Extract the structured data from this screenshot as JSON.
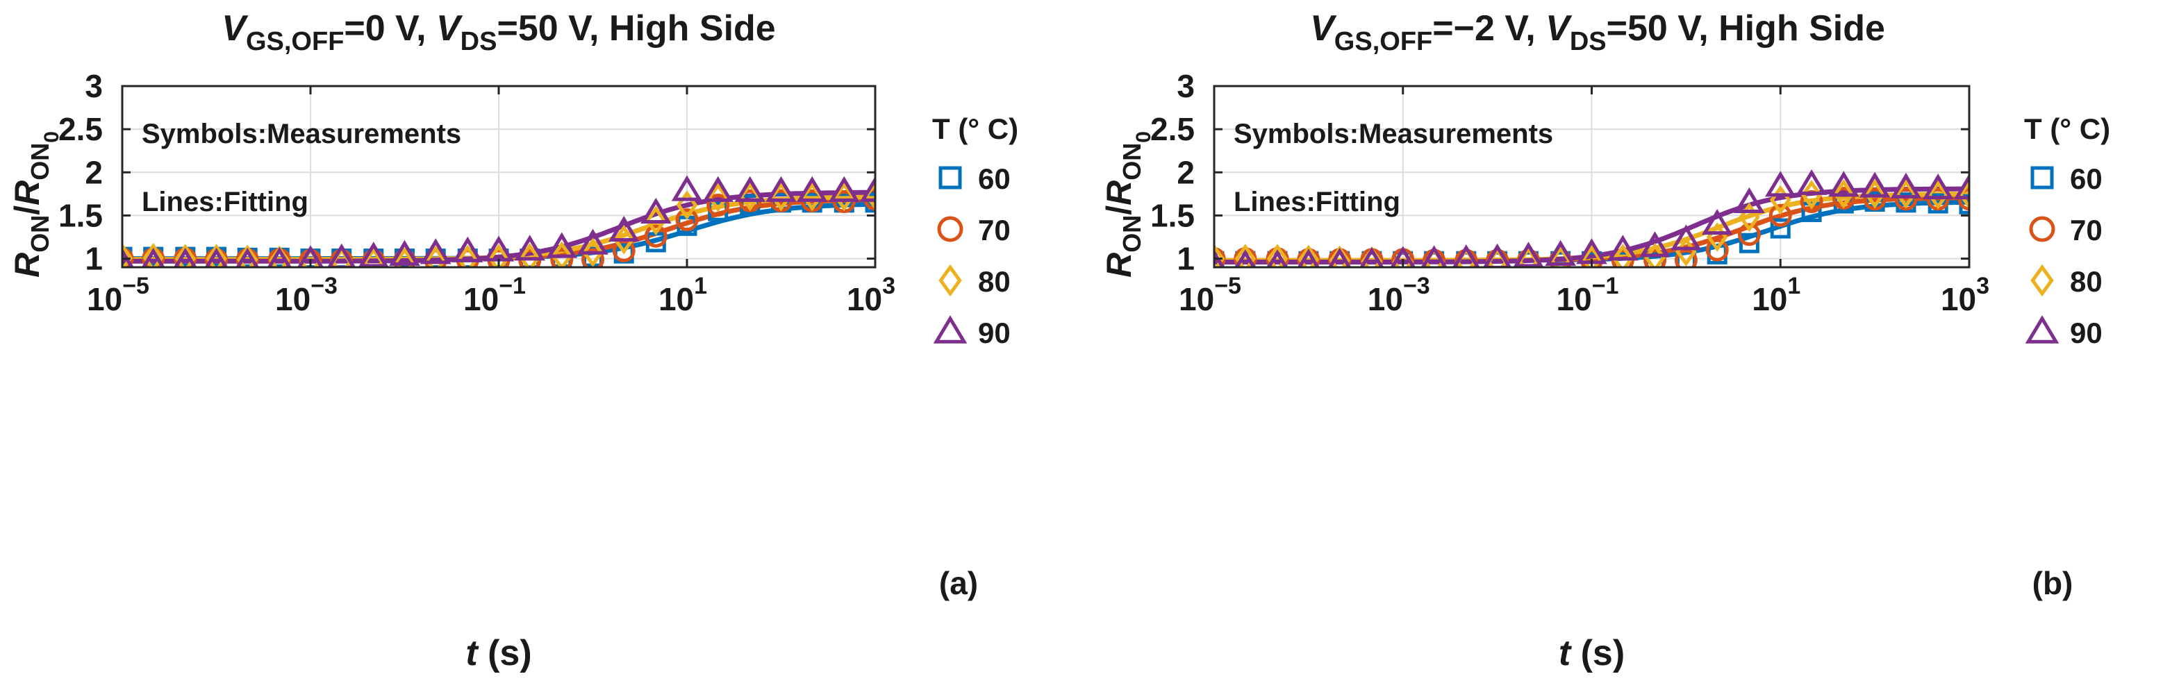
{
  "chart_data": [
    {
      "type": "scatter",
      "panel_label": "(a)",
      "title": {
        "v1": "V",
        "s1": "GS,OFF",
        "rest1": "=0 V, ",
        "v2": "V",
        "s2": "DS",
        "rest2": "=50 V, High Side"
      },
      "xlabel": {
        "var": "t",
        "unit": " (s)"
      },
      "ylabel": {
        "r1": "R",
        "s1": "ON",
        "slash": "/",
        "r2": "R",
        "s2": "ON",
        "sub0": "0"
      },
      "x_scale": "log",
      "xlim": [
        1e-05,
        1000
      ],
      "ylim": [
        0.9,
        3
      ],
      "x_ticks": [
        {
          "base": "10",
          "exp": "−5",
          "value": -5
        },
        {
          "base": "10",
          "exp": "−3",
          "value": -3
        },
        {
          "base": "10",
          "exp": "−1",
          "value": -1
        },
        {
          "base": "10",
          "exp": "1",
          "value": 1
        },
        {
          "base": "10",
          "exp": "3",
          "value": 3
        }
      ],
      "y_ticks": [
        {
          "label": "1",
          "value": 1
        },
        {
          "label": "1.5",
          "value": 1.5
        },
        {
          "label": "2",
          "value": 2
        },
        {
          "label": "2.5",
          "value": 2.5
        },
        {
          "label": "3",
          "value": 3
        }
      ],
      "grid": true,
      "annotations": [
        "Symbols:Measurements",
        "Lines:Fitting"
      ],
      "legend_title": "T (° C)",
      "series": [
        {
          "name": "60",
          "color": "#0072BD",
          "marker": "square",
          "fit": {
            "base": 1.0,
            "delta": 0.64,
            "log_t0": 1.0,
            "k": 2.1
          },
          "x_log": [
            -5,
            -4.67,
            -4.33,
            -4,
            -3.67,
            -3.33,
            -3,
            -2.67,
            -2.33,
            -2,
            -1.67,
            -1.33,
            -1,
            -0.67,
            -0.33,
            0,
            0.33,
            0.67,
            1,
            1.33,
            1.67,
            2,
            2.33,
            2.67,
            3
          ],
          "y": [
            1.02,
            1.02,
            1.02,
            1.02,
            1.01,
            1.01,
            1.0,
            1.0,
            1.0,
            1.0,
            1.0,
            1.0,
            1.0,
            1.0,
            1.01,
            1.02,
            1.06,
            1.19,
            1.38,
            1.55,
            1.63,
            1.65,
            1.65,
            1.65,
            1.65
          ]
        },
        {
          "name": "70",
          "color": "#D95319",
          "marker": "circle",
          "fit": {
            "base": 0.99,
            "delta": 0.7,
            "log_t0": 0.8,
            "k": 2.1
          },
          "x_log": [
            -5,
            -4.67,
            -4.33,
            -4,
            -3.67,
            -3.33,
            -3,
            -2.67,
            -2.33,
            -2,
            -1.67,
            -1.33,
            -1,
            -0.67,
            -0.33,
            0,
            0.33,
            0.67,
            1,
            1.33,
            1.67,
            2,
            2.33,
            2.67,
            3
          ],
          "y": [
            1.0,
            1.0,
            1.0,
            0.99,
            0.99,
            0.99,
            0.98,
            0.98,
            0.98,
            0.98,
            0.98,
            0.98,
            0.98,
            0.98,
            0.99,
            0.99,
            1.09,
            1.26,
            1.45,
            1.62,
            1.67,
            1.67,
            1.67,
            1.66,
            1.69
          ]
        },
        {
          "name": "80",
          "color": "#EDB120",
          "marker": "diamond",
          "fit": {
            "base": 0.99,
            "delta": 0.73,
            "log_t0": 0.55,
            "k": 2.1
          },
          "x_log": [
            -5,
            -4.67,
            -4.33,
            -4,
            -3.67,
            -3.33,
            -3,
            -2.67,
            -2.33,
            -2,
            -1.67,
            -1.33,
            -1,
            -0.67,
            -0.33,
            0,
            0.33,
            0.67,
            1,
            1.33,
            1.67,
            2,
            2.33,
            2.67,
            3
          ],
          "y": [
            1.01,
            1.01,
            1.0,
            1.0,
            0.99,
            0.98,
            0.96,
            0.96,
            0.96,
            0.96,
            0.98,
            0.99,
            1.0,
            1.01,
            1.03,
            1.07,
            1.22,
            1.44,
            1.62,
            1.71,
            1.72,
            1.72,
            1.72,
            1.72,
            1.73
          ]
        },
        {
          "name": "90",
          "color": "#7E2F8E",
          "marker": "triangle",
          "fit": {
            "base": 0.97,
            "delta": 0.8,
            "log_t0": 0.3,
            "k": 2.1
          },
          "x_log": [
            -5,
            -4.67,
            -4.33,
            -4,
            -3.67,
            -3.33,
            -3,
            -2.67,
            -2.33,
            -2,
            -1.67,
            -1.33,
            -1,
            -0.67,
            -0.33,
            0,
            0.33,
            0.67,
            1,
            1.33,
            1.67,
            2,
            2.33,
            2.67,
            3
          ],
          "y": [
            0.95,
            0.95,
            0.95,
            0.95,
            0.95,
            0.96,
            0.98,
            1.0,
            1.02,
            1.04,
            1.06,
            1.08,
            1.09,
            1.1,
            1.13,
            1.17,
            1.32,
            1.53,
            1.79,
            1.78,
            1.78,
            1.78,
            1.78,
            1.78,
            1.78
          ]
        }
      ]
    },
    {
      "type": "scatter",
      "panel_label": "(b)",
      "title": {
        "v1": "V",
        "s1": "GS,OFF",
        "rest1": "=−2 V, ",
        "v2": "V",
        "s2": "DS",
        "rest2": "=50 V, High Side"
      },
      "xlabel": {
        "var": "t",
        "unit": " (s)"
      },
      "ylabel": {
        "r1": "R",
        "s1": "ON",
        "slash": "/",
        "r2": "R",
        "s2": "ON",
        "sub0": "0"
      },
      "x_scale": "log",
      "xlim": [
        1e-05,
        1000
      ],
      "ylim": [
        0.9,
        3
      ],
      "x_ticks": [
        {
          "base": "10",
          "exp": "−5",
          "value": -5
        },
        {
          "base": "10",
          "exp": "−3",
          "value": -3
        },
        {
          "base": "10",
          "exp": "−1",
          "value": -1
        },
        {
          "base": "10",
          "exp": "1",
          "value": 1
        },
        {
          "base": "10",
          "exp": "3",
          "value": 3
        }
      ],
      "y_ticks": [
        {
          "label": "1",
          "value": 1
        },
        {
          "label": "1.5",
          "value": 1.5
        },
        {
          "label": "2",
          "value": 2
        },
        {
          "label": "2.5",
          "value": 2.5
        },
        {
          "label": "3",
          "value": 3
        }
      ],
      "grid": true,
      "annotations": [
        "Symbols:Measurements",
        "Lines:Fitting"
      ],
      "legend_title": "T (° C)",
      "series": [
        {
          "name": "60",
          "color": "#0072BD",
          "marker": "square",
          "fit": {
            "base": 0.98,
            "delta": 0.68,
            "log_t0": 0.85,
            "k": 2.2
          },
          "x_log": [
            -5,
            -4.67,
            -4.33,
            -4,
            -3.67,
            -3.33,
            -3,
            -2.67,
            -2.33,
            -2,
            -1.67,
            -1.33,
            -1,
            -0.67,
            -0.33,
            0,
            0.33,
            0.67,
            1,
            1.33,
            1.67,
            2,
            2.33,
            2.67,
            3
          ],
          "y": [
            0.97,
            0.97,
            0.97,
            0.97,
            0.97,
            0.97,
            0.97,
            0.97,
            0.97,
            0.97,
            0.97,
            0.97,
            0.97,
            0.97,
            0.97,
            0.98,
            1.05,
            1.18,
            1.35,
            1.54,
            1.64,
            1.66,
            1.65,
            1.64,
            1.63
          ]
        },
        {
          "name": "70",
          "color": "#D95319",
          "marker": "circle",
          "fit": {
            "base": 0.98,
            "delta": 0.73,
            "log_t0": 0.6,
            "k": 2.2
          },
          "x_log": [
            -5,
            -4.67,
            -4.33,
            -4,
            -3.67,
            -3.33,
            -3,
            -2.67,
            -2.33,
            -2,
            -1.67,
            -1.33,
            -1,
            -0.67,
            -0.33,
            0,
            0.33,
            0.67,
            1,
            1.33,
            1.67,
            2,
            2.33,
            2.67,
            3
          ],
          "y": [
            1.0,
            1.0,
            1.0,
            0.99,
            0.99,
            0.99,
            0.99,
            0.98,
            0.98,
            0.98,
            0.98,
            0.98,
            0.98,
            0.98,
            0.98,
            0.98,
            1.1,
            1.28,
            1.5,
            1.66,
            1.7,
            1.69,
            1.69,
            1.69,
            1.69
          ]
        },
        {
          "name": "80",
          "color": "#EDB120",
          "marker": "diamond",
          "fit": {
            "base": 0.98,
            "delta": 0.77,
            "log_t0": 0.35,
            "k": 2.2
          },
          "x_log": [
            -5,
            -4.67,
            -4.33,
            -4,
            -3.67,
            -3.33,
            -3,
            -2.67,
            -2.33,
            -2,
            -1.67,
            -1.33,
            -1,
            -0.67,
            -0.33,
            0,
            0.33,
            0.67,
            1,
            1.33,
            1.67,
            2,
            2.33,
            2.67,
            3
          ],
          "y": [
            1.0,
            1.0,
            1.0,
            0.99,
            0.98,
            0.97,
            0.96,
            0.96,
            0.96,
            0.96,
            0.97,
            0.98,
            0.99,
            1.0,
            1.01,
            1.08,
            1.25,
            1.48,
            1.68,
            1.74,
            1.75,
            1.75,
            1.75,
            1.74,
            1.74
          ]
        },
        {
          "name": "90",
          "color": "#7E2F8E",
          "marker": "triangle",
          "fit": {
            "base": 0.96,
            "delta": 0.85,
            "log_t0": 0.1,
            "k": 2.2
          },
          "x_log": [
            -5,
            -4.67,
            -4.33,
            -4,
            -3.67,
            -3.33,
            -3,
            -2.67,
            -2.33,
            -2,
            -1.67,
            -1.33,
            -1,
            -0.67,
            -0.33,
            0,
            0.33,
            0.67,
            1,
            1.33,
            1.67,
            2,
            2.33,
            2.67,
            3
          ],
          "y": [
            0.93,
            0.93,
            0.93,
            0.94,
            0.95,
            0.96,
            0.97,
            0.98,
            0.99,
            1.0,
            1.02,
            1.04,
            1.06,
            1.1,
            1.14,
            1.22,
            1.4,
            1.65,
            1.84,
            1.86,
            1.84,
            1.83,
            1.82,
            1.81,
            1.81
          ]
        }
      ]
    }
  ]
}
